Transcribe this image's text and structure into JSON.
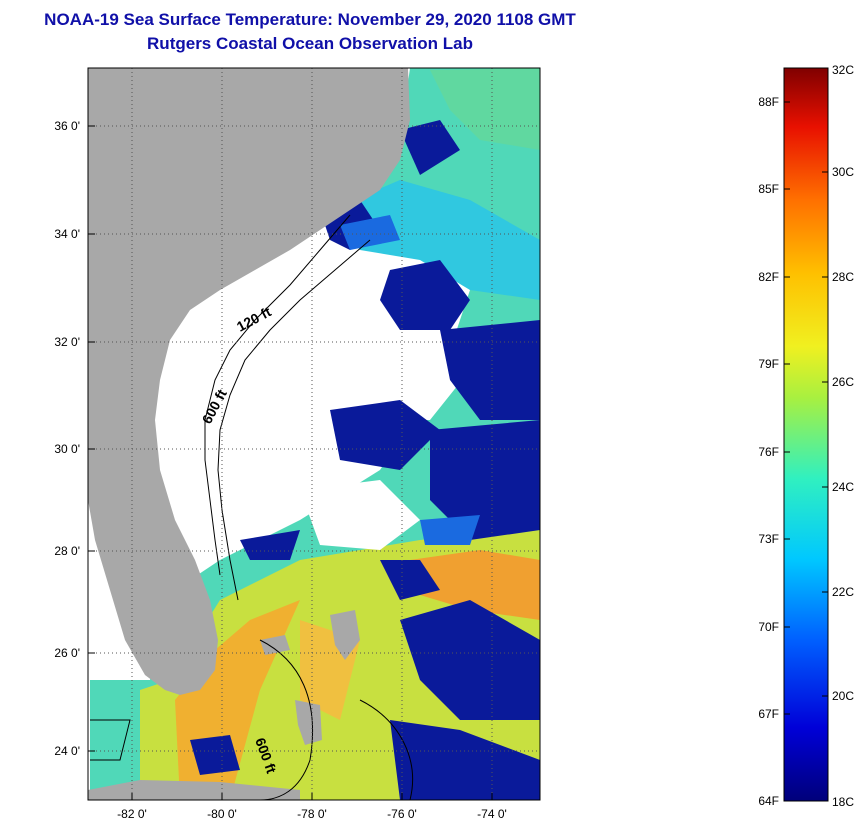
{
  "title": {
    "line1": "NOAA-19 Sea Surface Temperature:  November 29, 2020 1108 GMT",
    "line2": "Rutgers Coastal Ocean Observation Lab"
  },
  "map": {
    "lat_labels": [
      "36 0'",
      "34 0'",
      "32 0'",
      "30 0'",
      "28 0'",
      "26 0'",
      "24 0'"
    ],
    "lon_labels": [
      "-82 0'",
      "-80 0'",
      "-78 0'",
      "-76 0'",
      "-74 0'"
    ],
    "contours": {
      "c120": "120 ft",
      "c600a": "600 ft",
      "c600b": "600 ft"
    },
    "colors": {
      "land": "#a8a8a8",
      "cloud": "#ffffff",
      "cold": "#0a1a9a",
      "cool": "#1a6ae0",
      "mid": "#40d8a0",
      "warm": "#c8e840",
      "hot": "#f0b020"
    }
  },
  "colorbar": {
    "fahrenheit": [
      "88F",
      "85F",
      "82F",
      "79F",
      "76F",
      "73F",
      "70F",
      "67F",
      "64F"
    ],
    "celsius": [
      "32C",
      "30C",
      "28C",
      "26C",
      "24C",
      "22C",
      "20C",
      "18C"
    ]
  }
}
